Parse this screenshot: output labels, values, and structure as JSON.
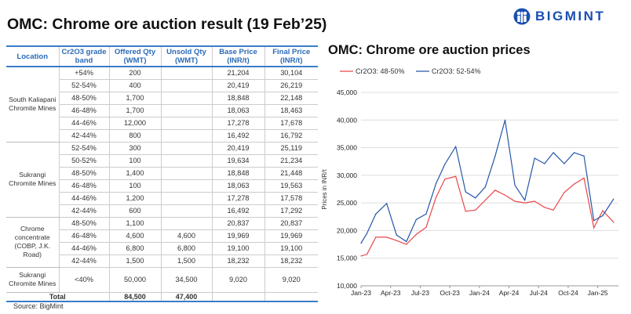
{
  "title": "OMC: Chrome ore auction result (19 Feb’25)",
  "logo": {
    "text": "BIGMINT"
  },
  "table": {
    "headers": [
      "Location",
      "Cr2O3 grade band",
      "Offered Qty (WMT)",
      "Unsold Qty (WMT)",
      "Base Price (INR/t)",
      "Final Price (INR/t)"
    ],
    "groups": [
      {
        "location": "South Kaliapani Chromite Mines",
        "rows": [
          [
            "+54%",
            "200",
            "",
            "21,204",
            "30,104"
          ],
          [
            "52-54%",
            "400",
            "",
            "20,419",
            "26,219"
          ],
          [
            "48-50%",
            "1,700",
            "",
            "18,848",
            "22,148"
          ],
          [
            "46-48%",
            "1,700",
            "",
            "18,063",
            "18,463"
          ],
          [
            "44-46%",
            "12,000",
            "",
            "17,278",
            "17,678"
          ],
          [
            "42-44%",
            "800",
            "",
            "16,492",
            "16,792"
          ]
        ]
      },
      {
        "location": "Sukrangi Chromite Mines",
        "rows": [
          [
            "52-54%",
            "300",
            "",
            "20,419",
            "25,119"
          ],
          [
            "50-52%",
            "100",
            "",
            "19,634",
            "21,234"
          ],
          [
            "48-50%",
            "1,400",
            "",
            "18,848",
            "21,448"
          ],
          [
            "46-48%",
            "100",
            "",
            "18,063",
            "19,563"
          ],
          [
            "44-46%",
            "1,200",
            "",
            "17,278",
            "17,578"
          ],
          [
            "42-44%",
            "600",
            "",
            "16,492",
            "17,292"
          ]
        ]
      },
      {
        "location": "Chrome concentrate (COBP, J.K. Road)",
        "rows": [
          [
            "48-50%",
            "1,100",
            "",
            "20,837",
            "20,837"
          ],
          [
            "46-48%",
            "4,600",
            "4,600",
            "19,969",
            "19,969"
          ],
          [
            "44-46%",
            "6,800",
            "6,800",
            "19,100",
            "19,100"
          ],
          [
            "42-44%",
            "1,500",
            "1,500",
            "18,232",
            "18,232"
          ]
        ]
      },
      {
        "location": "Sukrangi Chromite Mines",
        "rows": [
          [
            "<40%",
            "50,000",
            "34,500",
            "9,020",
            "9,020"
          ]
        ]
      }
    ],
    "total": {
      "label": "Total",
      "offered": "84,500",
      "unsold": "47,400"
    }
  },
  "source": "Source: BigMint",
  "chart_data": {
    "type": "line",
    "title": "OMC: Chrome ore auction prices",
    "ylabel": "Prices in INR/t",
    "ylim": [
      10000,
      45000
    ],
    "yticks": [
      "10,000",
      "15,000",
      "20,000",
      "25,000",
      "30,000",
      "35,000",
      "40,000",
      "45,000"
    ],
    "xticks": [
      "Jan-23",
      "Apr-23",
      "Jul-23",
      "Oct-23",
      "Jan-24",
      "Apr-24",
      "Jul-24",
      "Oct-24",
      "Jan-25"
    ],
    "x_month_index": [
      0,
      0.6,
      1.5,
      2.6,
      3.6,
      4.6,
      5.6,
      6.6,
      7.6,
      8.5,
      9.6,
      10.6,
      11.6,
      12.6,
      13.6,
      14.6,
      15.6,
      16.6,
      17.6,
      18.6,
      19.5,
      20.6,
      21.6,
      22.6,
      23.6,
      24.5,
      25.6
    ],
    "series": [
      {
        "name": "Cr2O3: 48-50%",
        "color": "#e8474a",
        "values": [
          15400,
          15700,
          18800,
          18800,
          18200,
          17500,
          19300,
          20600,
          26000,
          29300,
          29800,
          23500,
          23700,
          25500,
          27300,
          26400,
          25300,
          25000,
          25300,
          24200,
          23700,
          26900,
          28400,
          29500,
          20500,
          23600,
          21500
        ]
      },
      {
        "name": "Cr2O3: 52-54%",
        "color": "#2456a8",
        "values": [
          17700,
          19500,
          23000,
          24900,
          19200,
          18000,
          22000,
          23000,
          28500,
          32000,
          35200,
          27000,
          25900,
          27900,
          33500,
          40000,
          28200,
          25500,
          33100,
          32100,
          34100,
          32100,
          34100,
          33500,
          21800,
          22700,
          25700
        ]
      }
    ]
  }
}
